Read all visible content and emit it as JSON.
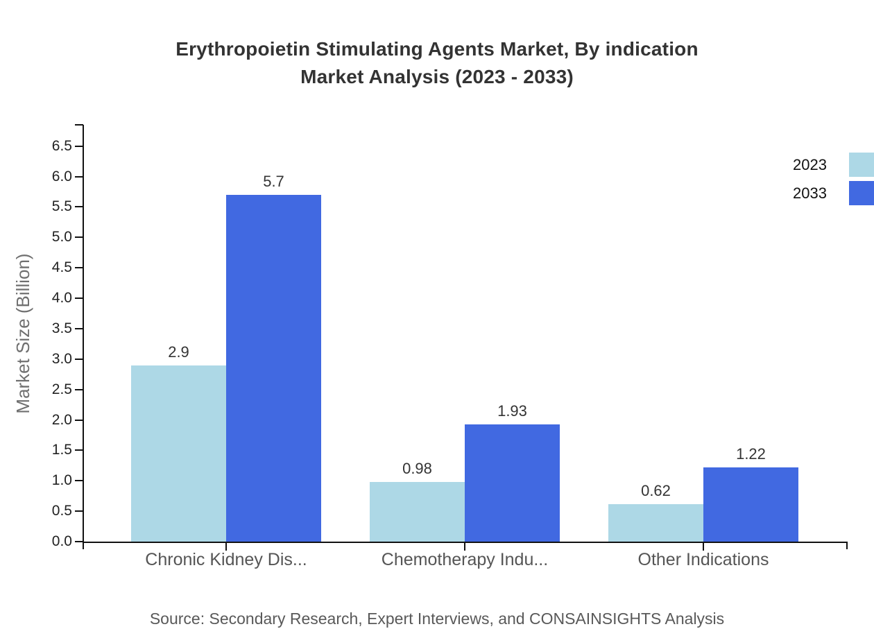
{
  "title": {
    "line1": "Erythropoietin Stimulating Agents Market, By indication",
    "line2": "Market Analysis (2023 - 2033)"
  },
  "source": "Source: Secondary Research, Expert Interviews, and CONSAINSIGHTS Analysis",
  "chart_data": {
    "type": "bar",
    "title": "Erythropoietin Stimulating Agents Market, By indication Market Analysis (2023 - 2033)",
    "categories": [
      "Chronic Kidney Dis...",
      "Chemotherapy Indu...",
      "Other Indications"
    ],
    "series": [
      {
        "name": "2023",
        "color": "#add8e6",
        "values": [
          2.9,
          0.98,
          0.62
        ],
        "labels": [
          "2.9",
          "0.98",
          "0.62"
        ]
      },
      {
        "name": "2033",
        "color": "#4169e1",
        "values": [
          5.7,
          1.93,
          1.22
        ],
        "labels": [
          "5.7",
          "1.93",
          "1.22"
        ]
      }
    ],
    "xlabel": "",
    "ylabel": "Market Size (Billion)",
    "ylim": [
      0,
      6.85
    ],
    "yticks": [
      0,
      0.5,
      1,
      1.5,
      2,
      2.5,
      3,
      3.5,
      4,
      4.5,
      5,
      5.5,
      6,
      6.5
    ],
    "grid": false,
    "legend_position": "top-right"
  },
  "colors": {
    "series_2023": "#add8e6",
    "series_2033": "#4169e1",
    "axis_line": "#111111",
    "title_text": "#333333",
    "tick_text": "#222222",
    "category_text": "#555555",
    "axis_title_text": "#6f6f6f",
    "source_text": "#595959",
    "legend_text": "#111111",
    "background": "#ffffff"
  }
}
